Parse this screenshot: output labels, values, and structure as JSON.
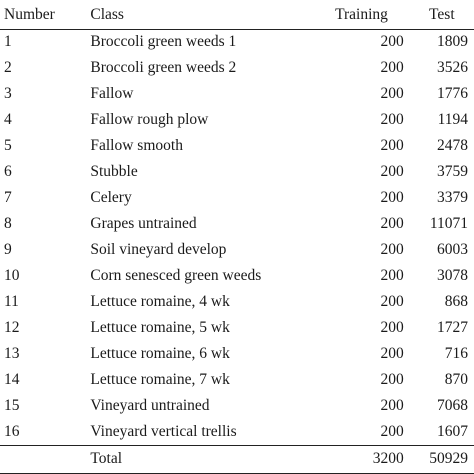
{
  "table": {
    "headers": {
      "number": "Number",
      "class": "Class",
      "training": "Training",
      "test": "Test"
    },
    "rows": [
      {
        "number": "1",
        "class": "Broccoli green weeds 1",
        "training": "200",
        "test": "1809"
      },
      {
        "number": "2",
        "class": "Broccoli green weeds 2",
        "training": "200",
        "test": "3526"
      },
      {
        "number": "3",
        "class": "Fallow",
        "training": "200",
        "test": "1776"
      },
      {
        "number": "4",
        "class": "Fallow rough plow",
        "training": "200",
        "test": "1194"
      },
      {
        "number": "5",
        "class": "Fallow smooth",
        "training": "200",
        "test": "2478"
      },
      {
        "number": "6",
        "class": "Stubble",
        "training": "200",
        "test": "3759"
      },
      {
        "number": "7",
        "class": "Celery",
        "training": "200",
        "test": "3379"
      },
      {
        "number": "8",
        "class": "Grapes untrained",
        "training": "200",
        "test": "11071"
      },
      {
        "number": "9",
        "class": "Soil vineyard develop",
        "training": "200",
        "test": "6003"
      },
      {
        "number": "10",
        "class": "Corn senesced green weeds",
        "training": "200",
        "test": "3078"
      },
      {
        "number": "11",
        "class": "Lettuce romaine, 4 wk",
        "training": "200",
        "test": "868"
      },
      {
        "number": "12",
        "class": "Lettuce romaine, 5 wk",
        "training": "200",
        "test": "1727"
      },
      {
        "number": "13",
        "class": "Lettuce romaine, 6 wk",
        "training": "200",
        "test": "716"
      },
      {
        "number": "14",
        "class": "Lettuce romaine, 7 wk",
        "training": "200",
        "test": "870"
      },
      {
        "number": "15",
        "class": "Vineyard untrained",
        "training": "200",
        "test": "7068"
      },
      {
        "number": "16",
        "class": "Vineyard vertical trellis",
        "training": "200",
        "test": "1607"
      }
    ],
    "total": {
      "number": "",
      "class": "Total",
      "training": "3200",
      "test": "50929"
    }
  }
}
